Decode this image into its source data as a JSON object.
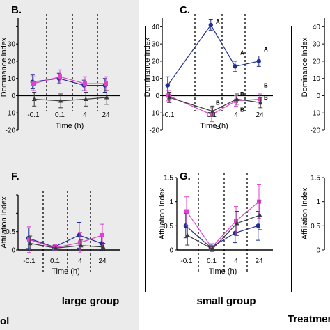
{
  "footer": {
    "left_cut": "ol",
    "large_group": "large group",
    "small_group": "small group",
    "treatment_cut": "Treatment"
  },
  "colors": {
    "navy": "#1f2f8f",
    "magenta": "#e040d0",
    "dark": "#3a3a3a",
    "shade": "#ebebeb"
  },
  "chart_data": [
    {
      "id": "B",
      "label": "B.",
      "type": "line",
      "ylabel": "Dominance Index",
      "xlabel": "Time (h)",
      "categories": [
        "-0.1",
        "0.1",
        "4",
        "24"
      ],
      "ylim": [
        -20,
        45
      ],
      "yticks": [
        -20,
        -10,
        0,
        10,
        20,
        30,
        40
      ],
      "yticks_shown": [
        -20,
        -10,
        0,
        10,
        20,
        30
      ],
      "series": [
        {
          "color": "navy",
          "marker": "circle",
          "values": [
            8,
            10,
            6,
            6
          ],
          "err": [
            4,
            3,
            3,
            4
          ]
        },
        {
          "color": "magenta",
          "marker": "square",
          "values": [
            7,
            11,
            7,
            7
          ],
          "err": [
            4,
            4,
            4,
            4
          ]
        },
        {
          "color": "dark",
          "marker": "triangle",
          "values": [
            -2,
            -3,
            -2,
            -1
          ],
          "err": [
            4,
            4,
            4,
            4
          ]
        }
      ],
      "annotations": []
    },
    {
      "id": "C",
      "label": "C.",
      "type": "line",
      "ylabel": "Dominance Index",
      "xlabel": "Time (h)",
      "categories": [
        "-0.1",
        "0.1",
        "4",
        "24"
      ],
      "ylim": [
        -20,
        45
      ],
      "yticks": [
        -20,
        -10,
        0,
        10,
        20,
        30,
        40
      ],
      "yticks_shown": [
        -20,
        -10,
        0,
        10,
        20,
        30,
        40
      ],
      "series": [
        {
          "color": "navy",
          "marker": "circle",
          "values": [
            6,
            41,
            17,
            20
          ],
          "err": [
            5,
            3,
            3,
            3
          ]
        },
        {
          "color": "magenta",
          "marker": "square",
          "values": [
            0,
            -11,
            -3,
            -2
          ],
          "err": [
            3,
            4,
            3,
            3
          ]
        },
        {
          "color": "dark",
          "marker": "triangle",
          "values": [
            -1,
            -9,
            -2,
            -4
          ],
          "err": [
            3,
            3,
            3,
            3
          ]
        }
      ],
      "annotations": [
        {
          "i": 1,
          "y": 43,
          "text": "A"
        },
        {
          "i": 2,
          "y": 25,
          "text": "A"
        },
        {
          "i": 3,
          "y": 27,
          "text": "A"
        },
        {
          "i": 1,
          "y": -4,
          "text": "B"
        },
        {
          "i": 1,
          "y": -18,
          "text": "B"
        },
        {
          "i": 2,
          "y": 1,
          "text": "B"
        },
        {
          "i": 2,
          "y": -8,
          "text": "B"
        },
        {
          "i": 3,
          "y": 6,
          "text": "B"
        },
        {
          "i": 3,
          "y": -1,
          "text": "B"
        }
      ]
    },
    {
      "id": "F",
      "label": "F.",
      "type": "line",
      "ylabel": "Affiliation Index",
      "xlabel": "Time (h)",
      "categories": [
        "-0.1",
        "0.1",
        "4",
        "24"
      ],
      "ylim": [
        0,
        1.5
      ],
      "yticks": [
        0,
        0.5,
        1,
        1.5
      ],
      "yticks_shown": [
        0,
        0.5
      ],
      "series": [
        {
          "color": "navy",
          "marker": "circle",
          "values": [
            0.32,
            0.08,
            0.4,
            0.18
          ],
          "err": [
            0.28,
            0.08,
            0.35,
            0.2
          ]
        },
        {
          "color": "magenta",
          "marker": "square",
          "values": [
            0.28,
            0.06,
            0.2,
            0.4
          ],
          "err": [
            0.35,
            0.08,
            0.28,
            0.3
          ]
        },
        {
          "color": "dark",
          "marker": "triangle",
          "values": [
            0.18,
            0.05,
            0.12,
            0.08
          ],
          "err": [
            0.2,
            0.05,
            0.15,
            0.1
          ]
        }
      ],
      "annotations": []
    },
    {
      "id": "G",
      "label": "G.",
      "type": "line",
      "ylabel": "Affiliation Index",
      "xlabel": "Time (h)",
      "categories": [
        "-0.1",
        "0.1",
        "4",
        "24"
      ],
      "ylim": [
        0,
        1.5
      ],
      "yticks": [
        0,
        0.5,
        1,
        1.5
      ],
      "yticks_shown": [
        0,
        0.5,
        1,
        1.5
      ],
      "series": [
        {
          "color": "navy",
          "marker": "circle",
          "values": [
            0.5,
            0.05,
            0.35,
            0.5
          ],
          "err": [
            0.25,
            0.05,
            0.2,
            0.3
          ]
        },
        {
          "color": "magenta",
          "marker": "square",
          "values": [
            0.8,
            0.05,
            0.6,
            1.0
          ],
          "err": [
            0.3,
            0.08,
            0.3,
            0.35
          ]
        },
        {
          "color": "dark",
          "marker": "triangle",
          "values": [
            0.3,
            0.02,
            0.55,
            0.72
          ],
          "err": [
            0.2,
            0.05,
            0.25,
            0.3
          ]
        }
      ],
      "annotations": []
    },
    {
      "id": "right-top",
      "label": "",
      "type": "line",
      "ylabel": "Dominance Index",
      "xlabel": "",
      "categories": [],
      "ylim": [
        -20,
        45
      ],
      "yticks": [
        -20,
        -10,
        0,
        10,
        20,
        30,
        40
      ],
      "yticks_shown": [
        -20,
        -10,
        0,
        10,
        20,
        30,
        40
      ],
      "series": [],
      "annotations": []
    },
    {
      "id": "right-bottom",
      "label": "",
      "type": "line",
      "ylabel": "Affiliation Index",
      "xlabel": "",
      "categories": [],
      "ylim": [
        0,
        1.5
      ],
      "yticks": [
        0,
        0.5,
        1,
        1.5
      ],
      "yticks_shown": [
        0,
        0.5,
        1,
        1.5
      ],
      "series": [],
      "annotations": []
    }
  ]
}
